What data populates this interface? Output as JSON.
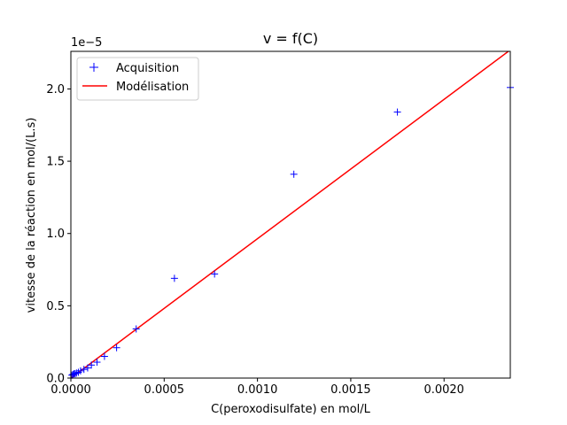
{
  "chart_data": {
    "type": "scatter",
    "title": "v = f(C)",
    "xlabel": "C(peroxodisulfate) en mol/L",
    "ylabel": "vitesse de la réaction en mol/(L.s)",
    "y_offset_label": "1e−5",
    "y_scale": 1e-05,
    "xlim": [
      0,
      0.002355
    ],
    "ylim": [
      0,
      2.26e-05
    ],
    "x_ticks": [
      0,
      0.0005,
      0.001,
      0.0015,
      0.002
    ],
    "x_tick_labels": [
      "0.0000",
      "0.0005",
      "0.0010",
      "0.0015",
      "0.0020"
    ],
    "y_ticks": [
      0,
      5e-06,
      1e-05,
      1.5e-05,
      2e-05
    ],
    "y_tick_labels": [
      "0.0",
      "0.5",
      "1.0",
      "1.5",
      "2.0"
    ],
    "grid": false,
    "legend_position": "top-left",
    "series": [
      {
        "name": "Acquisition",
        "kind": "points",
        "marker": "+",
        "color": "#0000ff",
        "x": [
          5.5e-06,
          1.1e-05,
          1.7e-05,
          2.3e-05,
          3e-05,
          4e-05,
          5.2e-05,
          7e-05,
          9e-05,
          0.00011,
          0.00014,
          0.00018,
          0.000245,
          0.00035,
          0.000555,
          0.00077,
          0.001195,
          0.00175,
          0.002355
        ],
        "y": [
          2e-07,
          2.5e-07,
          3e-07,
          3e-07,
          3.5e-07,
          4e-07,
          5e-07,
          6e-07,
          7e-07,
          9e-07,
          1.1e-06,
          1.5e-06,
          2.1e-06,
          3.4e-06,
          6.9e-06,
          7.2e-06,
          1.41e-05,
          1.84e-05,
          2.01e-05
        ]
      },
      {
        "name": "Modélisation",
        "kind": "line",
        "color": "#ff0000",
        "x": [
          0,
          0.002355
        ],
        "y": [
          0,
          2.27e-05
        ]
      }
    ]
  }
}
